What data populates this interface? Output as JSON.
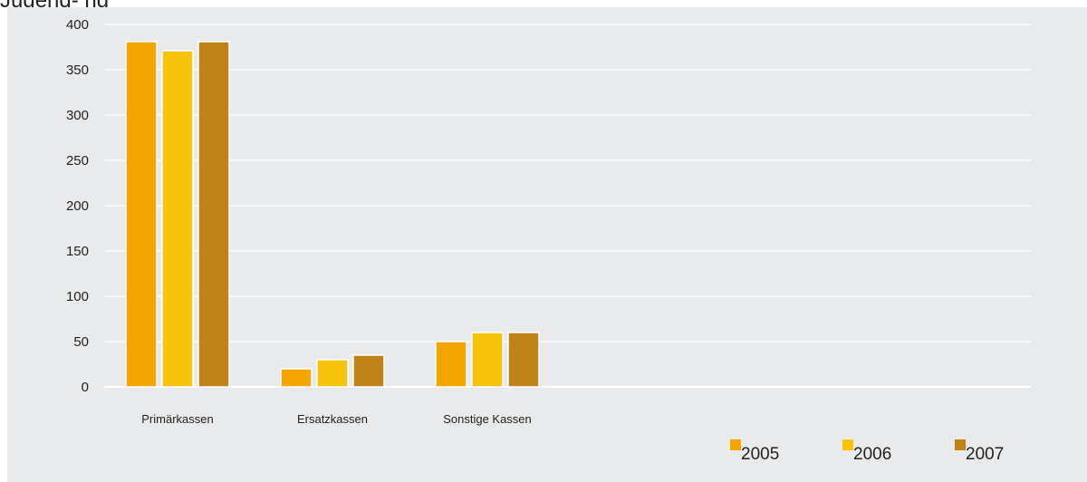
{
  "header": {
    "title_fragment": "Jugend-   ng"
  },
  "chart_data": {
    "type": "bar",
    "categories": [
      "Primärkassen",
      "Ersatzkassen",
      "Sonstige Kassen"
    ],
    "series": [
      {
        "name": "2005",
        "values": [
          381,
          20,
          50
        ],
        "color": "#f4a500"
      },
      {
        "name": "2006",
        "values": [
          371,
          30,
          60
        ],
        "color": "#f9c30a"
      },
      {
        "name": "2007",
        "values": [
          381,
          35,
          60
        ],
        "color": "#c08217"
      }
    ],
    "ylim": [
      0,
      400
    ],
    "yticks": [
      0,
      50,
      100,
      150,
      200,
      250,
      300,
      350,
      400
    ],
    "grid": true,
    "legend": "bottom-right",
    "background": "#e9eaec",
    "grid_color": "#ffffff"
  }
}
